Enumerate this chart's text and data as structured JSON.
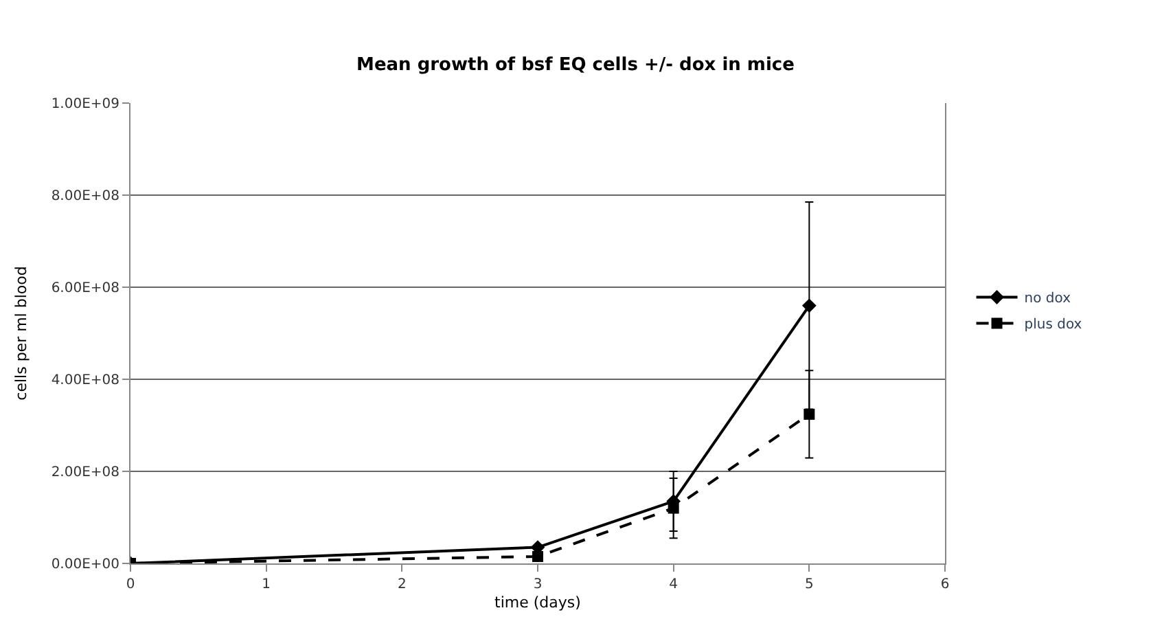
{
  "chart_data": {
    "type": "line",
    "title": "Mean growth of bsf EQ cells +/- dox in mice",
    "xlabel": "time (days)",
    "ylabel": "cells per ml blood",
    "x": [
      0,
      3,
      4,
      5
    ],
    "series": [
      {
        "name": "no dox",
        "color": "#000000",
        "values": [
          0,
          35000000,
          135000000,
          560000000
        ],
        "errors": [
          null,
          null,
          65000000,
          225000000
        ],
        "marker": "diamond",
        "line_style": "solid"
      },
      {
        "name": "plus dox",
        "color": "#000000",
        "values": [
          0,
          15000000,
          120000000,
          324000000
        ],
        "errors": [
          null,
          null,
          65000000,
          95000000
        ],
        "marker": "square",
        "line_style": "dashed"
      }
    ],
    "xlim": [
      0,
      6
    ],
    "xticks": [
      0,
      1,
      2,
      3,
      4,
      5,
      6
    ],
    "ylim": [
      0,
      1000000000
    ],
    "yticks": [
      {
        "value": 0,
        "label": "0.00E+00"
      },
      {
        "value": 200000000,
        "label": "2.00E+08"
      },
      {
        "value": 400000000,
        "label": "4.00E+08"
      },
      {
        "value": 600000000,
        "label": "6.00E+08"
      },
      {
        "value": 800000000,
        "label": "8.00E+08"
      },
      {
        "value": 1000000000,
        "label": "1.00E+09"
      }
    ],
    "grid": "y",
    "legend": "right"
  }
}
